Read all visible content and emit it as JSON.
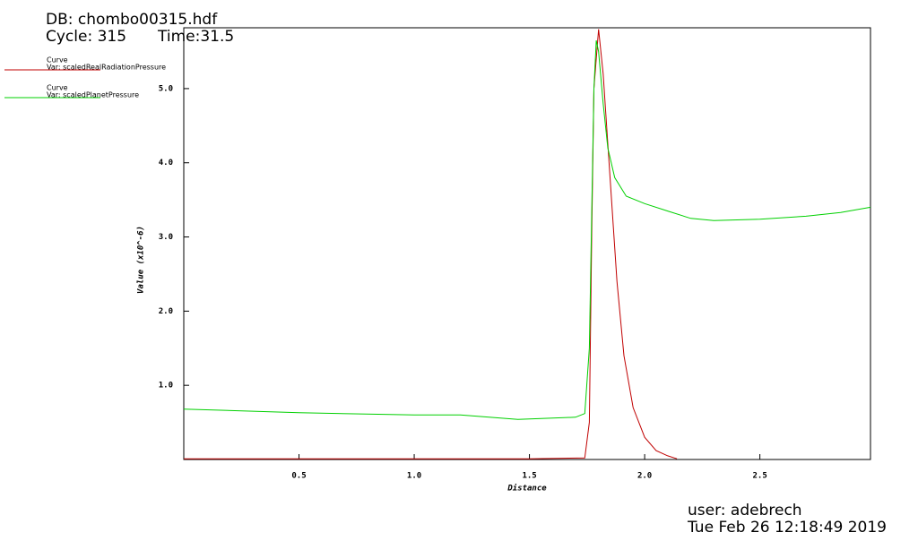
{
  "chart_data": {
    "type": "line",
    "db": "DB: chombo00315.hdf",
    "cycle": "Cycle: 315",
    "time": "Time:31.5",
    "xlabel": "Distance",
    "ylabel": "Value (x10^-6)",
    "user": "user: adebrech",
    "date": "Tue Feb 26 12:18:49 2019",
    "xlim": [
      0,
      2.98
    ],
    "ylim": [
      0,
      5.82
    ],
    "xticks": [
      0.5,
      {
        "value": 1,
        "label": "1.0"
      },
      1.5,
      {
        "value": 2,
        "label": "2.0"
      },
      2.5
    ],
    "yticks": [
      {
        "value": 1,
        "label": "1.0"
      },
      {
        "value": 2,
        "label": "2.0"
      },
      {
        "value": 3,
        "label": "3.0"
      },
      {
        "value": 4,
        "label": "4.0"
      },
      {
        "value": 5,
        "label": "5.0"
      }
    ],
    "series": [
      {
        "heading": "Curve",
        "name": "Var: scaledRealRadiationPressure",
        "color": "#c00000",
        "x": [
          0,
          0.5,
          1.0,
          1.5,
          1.74,
          1.76,
          1.77,
          1.78,
          1.8,
          1.82,
          1.85,
          1.88,
          1.91,
          1.95,
          2.0,
          2.05,
          2.1,
          2.14
        ],
        "values": [
          0.01,
          0.01,
          0.01,
          0.01,
          0.02,
          0.5,
          3.0,
          5.0,
          5.8,
          5.2,
          3.8,
          2.4,
          1.4,
          0.7,
          0.3,
          0.12,
          0.05,
          0.01
        ]
      },
      {
        "heading": "Curve",
        "name": "Var: scaledPlanetPressure",
        "color": "#00d000",
        "x": [
          0,
          0.5,
          1.0,
          1.2,
          1.45,
          1.7,
          1.74,
          1.76,
          1.78,
          1.79,
          1.8,
          1.82,
          1.84,
          1.87,
          1.92,
          2.0,
          2.1,
          2.2,
          2.3,
          2.5,
          2.7,
          2.85,
          2.98
        ],
        "values": [
          0.68,
          0.63,
          0.6,
          0.6,
          0.54,
          0.57,
          0.62,
          1.5,
          5.0,
          5.65,
          5.5,
          4.8,
          4.2,
          3.8,
          3.55,
          3.45,
          3.35,
          3.25,
          3.22,
          3.24,
          3.28,
          3.33,
          3.4
        ]
      }
    ]
  }
}
